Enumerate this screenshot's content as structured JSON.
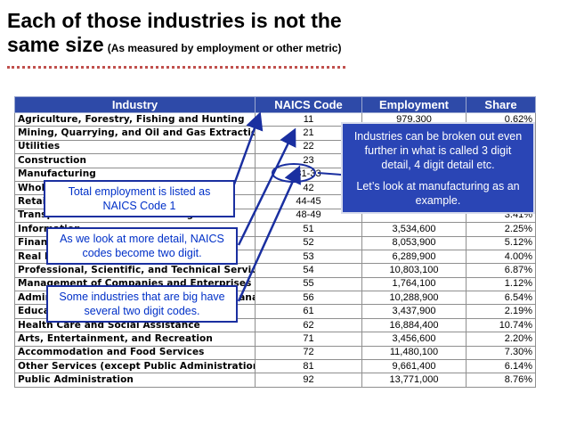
{
  "title": {
    "line1": "Each of those industries is not the",
    "line2": "same size",
    "subtitle": "(As measured by employment or other metric)"
  },
  "table": {
    "headers": [
      "Industry",
      "NAICS Code",
      "Employment",
      "Share"
    ],
    "rows": [
      [
        "Agriculture, Forestry, Fishing and Hunting",
        "11",
        "979,300",
        "0.62%"
      ],
      [
        "Mining, Quarrying, and Oil and Gas Extraction",
        "21",
        "",
        ""
      ],
      [
        "Utilities",
        "22",
        "",
        ""
      ],
      [
        "Construction",
        "23",
        "",
        ""
      ],
      [
        "Manufacturing",
        "31-33",
        "",
        ""
      ],
      [
        "Wholesale Trade",
        "42",
        "",
        ""
      ],
      [
        "Retail Trade",
        "44-45",
        "",
        ""
      ],
      [
        "Transportation and Warehousing",
        "48-49",
        "",
        "3.41%"
      ],
      [
        "Information",
        "51",
        "3,534,600",
        "2.25%"
      ],
      [
        "Finance and Insurance",
        "52",
        "8,053,900",
        "5.12%"
      ],
      [
        "Real Estate and Rental and Leasing",
        "53",
        "6,289,900",
        "4.00%"
      ],
      [
        "Professional, Scientific, and Technical Services",
        "54",
        "10,803,100",
        "6.87%"
      ],
      [
        "Management of Companies and Enterprises",
        "55",
        "1,764,100",
        "1.12%"
      ],
      [
        "Administrative and Support and Waste Management",
        "56",
        "10,288,900",
        "6.54%"
      ],
      [
        "Educational Services",
        "61",
        "3,437,900",
        "2.19%"
      ],
      [
        "Health Care and Social Assistance",
        "62",
        "16,884,400",
        "10.74%"
      ],
      [
        "Arts, Entertainment, and Recreation",
        "71",
        "3,456,600",
        "2.20%"
      ],
      [
        "Accommodation and Food Services",
        "72",
        "11,480,100",
        "7.30%"
      ],
      [
        "Other Services (except Public Administration)",
        "81",
        "9,661,400",
        "6.14%"
      ],
      [
        "Public Administration",
        "92",
        "13,771,000",
        "8.76%"
      ]
    ]
  },
  "callouts": {
    "broken_out": "Industries can be broken out even further in what is called 3 digit detail, 4 digit detail etc.",
    "manufacturing": "Let’s look at manufacturing as an example.",
    "total": "Total employment is listed as NAICS Code 1",
    "two_digit": "As we look at more detail, NAICS codes become two digit.",
    "big_industries": "Some industries that are big have several two digit codes."
  },
  "colors": {
    "header_bg": "#2e4aa8",
    "callout_text": "#0030c8",
    "arrow": "#1a2fa0",
    "title_rule": "#c0504d"
  }
}
